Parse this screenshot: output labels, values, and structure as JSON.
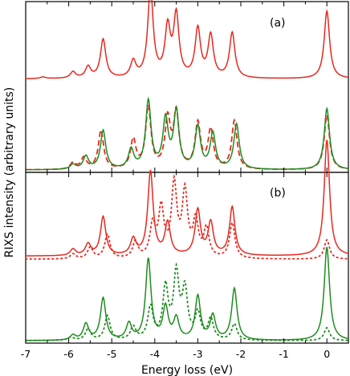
{
  "chart_data": {
    "type": "line",
    "xlabel": "Energy loss (eV)",
    "ylabel": "RIXS intensity (arbitrary units)",
    "xlim": [
      -7,
      0.5
    ],
    "xticks": [
      "-7",
      "-6",
      "-5",
      "-4",
      "-3",
      "-2",
      "-1",
      "0"
    ],
    "grid": false,
    "legend": "none",
    "colors": {
      "red": "#e8281e",
      "green": "#1f8c1f"
    },
    "panels": [
      {
        "label": "(a)",
        "series": [
          {
            "color": "red",
            "style": "solid",
            "offset": 0.52,
            "baseline": 0.045,
            "peaks": [
              [
                0.0,
                0.42
              ],
              [
                -2.2,
                0.28
              ],
              [
                -2.7,
                0.26
              ],
              [
                -3.0,
                0.3
              ],
              [
                -3.5,
                0.38
              ],
              [
                -3.7,
                0.3
              ],
              [
                -4.1,
                0.55
              ],
              [
                -4.5,
                0.1
              ],
              [
                -5.2,
                0.24
              ],
              [
                -5.55,
                0.07
              ],
              [
                -5.9,
                0.04
              ],
              [
                -6.6,
                0.01
              ]
            ]
          },
          {
            "color": "red",
            "style": "dashed",
            "offset": 0.0,
            "baseline": 0.0,
            "peaks": [
              [
                0.0,
                0.34
              ],
              [
                -2.15,
                0.3
              ],
              [
                -2.7,
                0.24
              ],
              [
                -3.0,
                0.28
              ],
              [
                -3.5,
                0.34
              ],
              [
                -3.7,
                0.3
              ],
              [
                -4.15,
                0.38
              ],
              [
                -4.5,
                0.18
              ],
              [
                -5.25,
                0.24
              ],
              [
                -5.65,
                0.07
              ],
              [
                -5.9,
                0.04
              ]
            ]
          },
          {
            "color": "green",
            "style": "solid",
            "offset": 0.0,
            "baseline": 0.0,
            "peaks": [
              [
                0.0,
                0.38
              ],
              [
                -2.1,
                0.28
              ],
              [
                -2.65,
                0.22
              ],
              [
                -3.0,
                0.26
              ],
              [
                -3.5,
                0.35
              ],
              [
                -3.75,
                0.3
              ],
              [
                -4.15,
                0.42
              ],
              [
                -4.55,
                0.12
              ],
              [
                -5.2,
                0.24
              ],
              [
                -5.6,
                0.08
              ],
              [
                -5.9,
                0.03
              ]
            ]
          }
        ]
      },
      {
        "label": "(b)",
        "series": [
          {
            "color": "red",
            "style": "solid",
            "offset": 0.48,
            "baseline": 0.045,
            "peaks": [
              [
                0.0,
                0.72
              ],
              [
                -2.2,
                0.3
              ],
              [
                -2.7,
                0.2
              ],
              [
                -3.0,
                0.28
              ],
              [
                -3.7,
                0.2
              ],
              [
                -4.1,
                0.52
              ],
              [
                -4.5,
                0.1
              ],
              [
                -5.2,
                0.24
              ],
              [
                -5.55,
                0.07
              ],
              [
                -5.9,
                0.04
              ]
            ]
          },
          {
            "color": "red",
            "style": "dotted",
            "offset": 0.47,
            "baseline": 0.035,
            "peaks": [
              [
                0.0,
                0.12
              ],
              [
                -2.2,
                0.22
              ],
              [
                -2.8,
                0.18
              ],
              [
                -3.05,
                0.22
              ],
              [
                -3.3,
                0.4
              ],
              [
                -3.55,
                0.45
              ],
              [
                -3.85,
                0.3
              ],
              [
                -4.05,
                0.2
              ],
              [
                -4.45,
                0.1
              ],
              [
                -5.1,
                0.15
              ],
              [
                -5.5,
                0.07
              ],
              [
                -5.9,
                0.03
              ]
            ]
          },
          {
            "color": "green",
            "style": "solid",
            "offset": 0.0,
            "baseline": 0.0,
            "peaks": [
              [
                0.0,
                0.58
              ],
              [
                -2.15,
                0.32
              ],
              [
                -2.65,
                0.15
              ],
              [
                -3.0,
                0.27
              ],
              [
                -3.5,
                0.13
              ],
              [
                -3.75,
                0.2
              ],
              [
                -4.15,
                0.5
              ],
              [
                -4.6,
                0.1
              ],
              [
                -5.2,
                0.26
              ],
              [
                -5.6,
                0.1
              ],
              [
                -5.9,
                0.03
              ]
            ]
          },
          {
            "color": "green",
            "style": "dotted",
            "offset": 0.0,
            "baseline": 0.0,
            "peaks": [
              [
                0.0,
                0.08
              ],
              [
                -2.15,
                0.1
              ],
              [
                -2.7,
                0.13
              ],
              [
                -3.0,
                0.16
              ],
              [
                -3.3,
                0.3
              ],
              [
                -3.5,
                0.4
              ],
              [
                -3.75,
                0.32
              ],
              [
                -4.1,
                0.2
              ],
              [
                -4.5,
                0.08
              ],
              [
                -5.1,
                0.15
              ],
              [
                -5.55,
                0.07
              ],
              [
                -5.95,
                0.02
              ]
            ]
          }
        ]
      }
    ]
  }
}
